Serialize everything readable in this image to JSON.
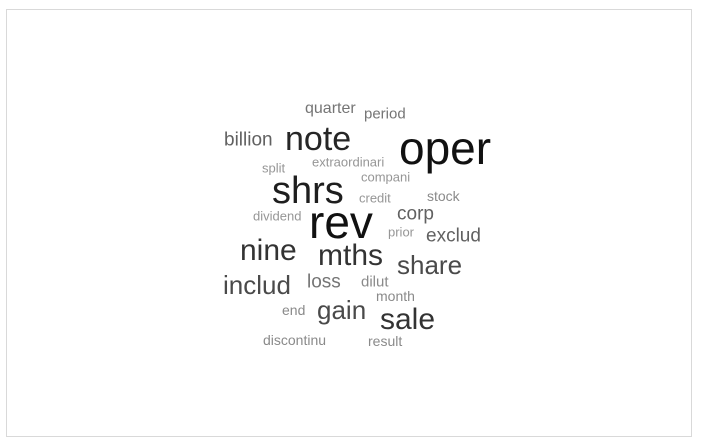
{
  "word_cloud": {
    "words": [
      {
        "text": "rev",
        "color": "#111111"
      },
      {
        "text": "oper",
        "color": "#111111"
      },
      {
        "text": "shrs",
        "color": "#1e1e1e"
      },
      {
        "text": "note",
        "color": "#262626"
      },
      {
        "text": "nine",
        "color": "#333333"
      },
      {
        "text": "mths",
        "color": "#333333"
      },
      {
        "text": "sale",
        "color": "#333333"
      },
      {
        "text": "share",
        "color": "#4a4a4a"
      },
      {
        "text": "includ",
        "color": "#4a4a4a"
      },
      {
        "text": "gain",
        "color": "#4a4a4a"
      },
      {
        "text": "billion",
        "color": "#616161"
      },
      {
        "text": "corp",
        "color": "#616161"
      },
      {
        "text": "exclud",
        "color": "#616161"
      },
      {
        "text": "loss",
        "color": "#757575"
      },
      {
        "text": "quarter",
        "color": "#757575"
      },
      {
        "text": "period",
        "color": "#757575"
      },
      {
        "text": "stock",
        "color": "#8a8a8a"
      },
      {
        "text": "dilut",
        "color": "#8a8a8a"
      },
      {
        "text": "month",
        "color": "#8a8a8a"
      },
      {
        "text": "end",
        "color": "#8a8a8a"
      },
      {
        "text": "result",
        "color": "#8a8a8a"
      },
      {
        "text": "discontinu",
        "color": "#8a8a8a"
      },
      {
        "text": "split",
        "color": "#969696"
      },
      {
        "text": "extraordinari",
        "color": "#969696"
      },
      {
        "text": "compani",
        "color": "#969696"
      },
      {
        "text": "credit",
        "color": "#969696"
      },
      {
        "text": "dividend",
        "color": "#969696"
      },
      {
        "text": "prior",
        "color": "#969696"
      }
    ]
  }
}
